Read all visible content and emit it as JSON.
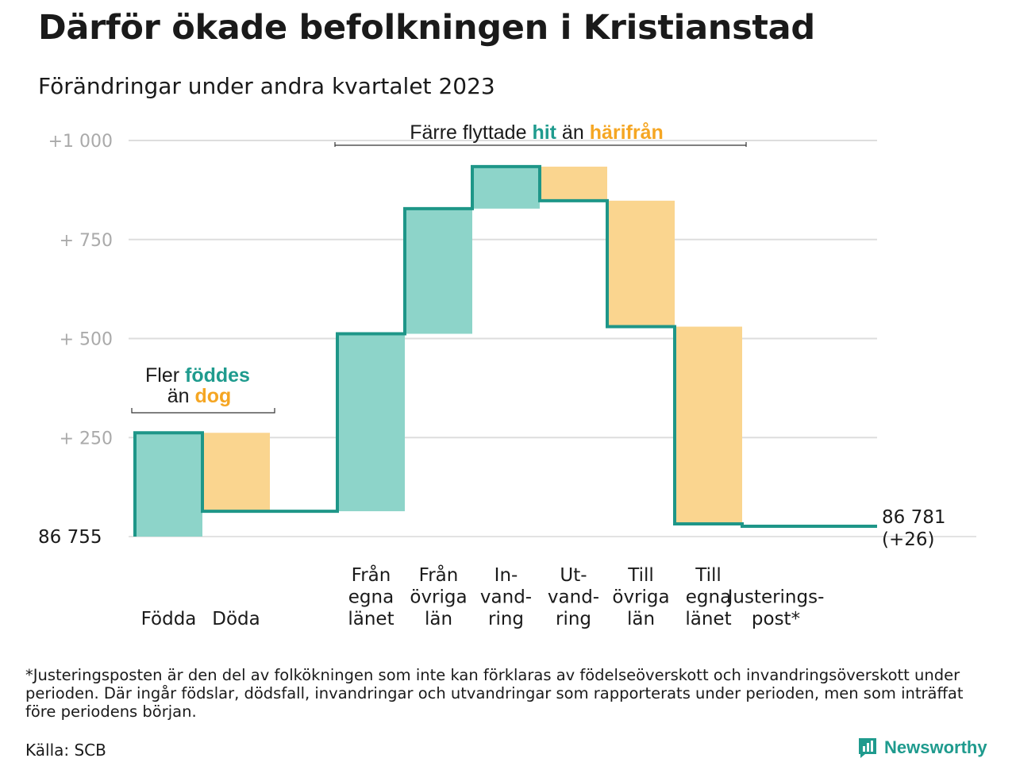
{
  "title": "Därför ökade befolkningen i Kristianstad",
  "subtitle": "Förändringar under andra kvartalet 2023",
  "colors": {
    "increase": "#8dd4c9",
    "decrease": "#fad58f",
    "line": "#1e9688",
    "teal_text": "#1f9b8e",
    "orange_text": "#f5a623",
    "grid": "#dddddd"
  },
  "chart_data": {
    "type": "waterfall",
    "start_value": 86755,
    "start_label": "86  755",
    "end_label": "86 781",
    "end_change_label": "(+26)",
    "ylim": [
      0,
      1000
    ],
    "yticks": [
      {
        "value": 1000,
        "label": "+1   000"
      },
      {
        "value": 750,
        "label": "+  750"
      },
      {
        "value": 500,
        "label": "+  500"
      },
      {
        "value": 250,
        "label": "+  250"
      }
    ],
    "steps": [
      {
        "category": "Födda",
        "label_lines": [
          "Födda"
        ],
        "value": 262,
        "kind": "increase"
      },
      {
        "category": "Döda",
        "label_lines": [
          "Döda"
        ],
        "value": -198,
        "kind": "decrease"
      },
      {
        "category": "",
        "label_lines": [],
        "value": 0,
        "kind": "gap"
      },
      {
        "category": "Från egna länet",
        "label_lines": [
          "Från",
          "egna",
          "länet"
        ],
        "value": 448,
        "kind": "increase"
      },
      {
        "category": "Från övriga län",
        "label_lines": [
          "Från",
          "övriga",
          "län"
        ],
        "value": 316,
        "kind": "increase"
      },
      {
        "category": "Invandring",
        "label_lines": [
          "In-",
          "vand-",
          "ring"
        ],
        "value": 106,
        "kind": "increase"
      },
      {
        "category": "Utvandring",
        "label_lines": [
          "Ut-",
          "vand-",
          "ring"
        ],
        "value": -86,
        "kind": "decrease"
      },
      {
        "category": "Till övriga län",
        "label_lines": [
          "Till",
          "övriga",
          "län"
        ],
        "value": -318,
        "kind": "decrease"
      },
      {
        "category": "Till egna länet",
        "label_lines": [
          "Till",
          "egna",
          "länet"
        ],
        "value": -498,
        "kind": "decrease"
      },
      {
        "category": "Justeringspost*",
        "label_lines": [
          "Justerings-",
          "post*"
        ],
        "value": -6,
        "kind": "adjustment"
      }
    ],
    "annotations": {
      "birth": {
        "line1_pre": "Fler ",
        "line1_hl": "föddes",
        "line2_pre": "än ",
        "line2_hl": "dog"
      },
      "moves": {
        "pre": "Färre flyttade ",
        "hl1": "hit",
        "mid": "  än ",
        "hl2": "härifrån"
      }
    }
  },
  "footnote": "*Justeringsposten är den del av folkökningen som inte kan förklaras av födelseöverskott och invandringsöverskott under perioden. Där ingår födslar, dödsfall, invandringar och utvandringar som rapporterats under perioden, men som inträffat före periodens början.",
  "source": "Källa: SCB",
  "brand": "Newsworthy"
}
